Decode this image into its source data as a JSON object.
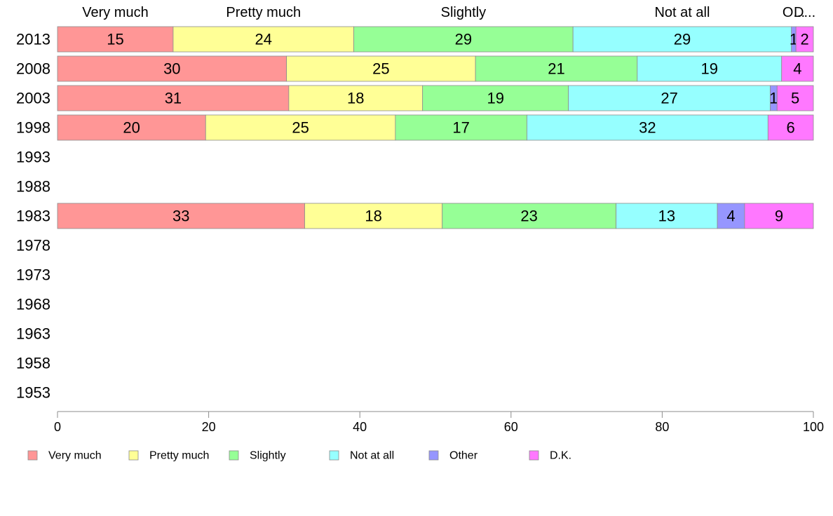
{
  "chart_data": {
    "type": "bar",
    "orientation": "horizontal-stacked-percent",
    "title": "",
    "xlabel": "",
    "ylabel": "",
    "xlim": [
      0,
      100
    ],
    "x_ticks": [
      0,
      20,
      40,
      60,
      80,
      100
    ],
    "grid": false,
    "legend_position": "bottom",
    "categories": [
      "2013",
      "2008",
      "2003",
      "1998",
      "1993",
      "1988",
      "1983",
      "1978",
      "1973",
      "1968",
      "1963",
      "1958",
      "1953"
    ],
    "series": [
      {
        "name": "Very much",
        "color": "#ff9696",
        "values": [
          15.3,
          30.3,
          30.6,
          19.6,
          null,
          null,
          32.7,
          null,
          null,
          null,
          null,
          null,
          null
        ]
      },
      {
        "name": "Pretty much",
        "color": "#ffff96",
        "values": [
          23.9,
          25.0,
          17.7,
          25.1,
          null,
          null,
          18.2,
          null,
          null,
          null,
          null,
          null,
          null
        ]
      },
      {
        "name": "Slightly",
        "color": "#96ff96",
        "values": [
          29.0,
          21.4,
          19.3,
          17.4,
          null,
          null,
          23.0,
          null,
          null,
          null,
          null,
          null,
          null
        ]
      },
      {
        "name": "Not at all",
        "color": "#96ffff",
        "values": [
          28.9,
          19.1,
          26.7,
          31.9,
          null,
          null,
          13.4,
          null,
          null,
          null,
          null,
          null,
          null
        ]
      },
      {
        "name": "Other",
        "color": "#9696ff",
        "values": [
          0.6,
          0.0,
          0.9,
          0.0,
          null,
          null,
          3.6,
          null,
          null,
          null,
          null,
          null,
          null
        ]
      },
      {
        "name": "D.K.",
        "color": "#ff78ff",
        "values": [
          2.3,
          4.2,
          4.8,
          6.0,
          null,
          null,
          9.1,
          null,
          null,
          null,
          null,
          null,
          null
        ]
      }
    ],
    "data_labels": [
      [
        "15",
        "24",
        "29",
        "29",
        "1",
        "2"
      ],
      [
        "30",
        "25",
        "21",
        "19",
        "",
        "4"
      ],
      [
        "31",
        "18",
        "19",
        "27",
        "1",
        "5"
      ],
      [
        "20",
        "25",
        "17",
        "32",
        "",
        "6"
      ],
      [],
      [],
      [
        "33",
        "18",
        "23",
        "13",
        "4",
        "9"
      ],
      [],
      [],
      [],
      [],
      [],
      []
    ],
    "top_labels": [
      "Very much",
      "Pretty much",
      "Slightly",
      "Not at all",
      "O...",
      "D..."
    ]
  }
}
